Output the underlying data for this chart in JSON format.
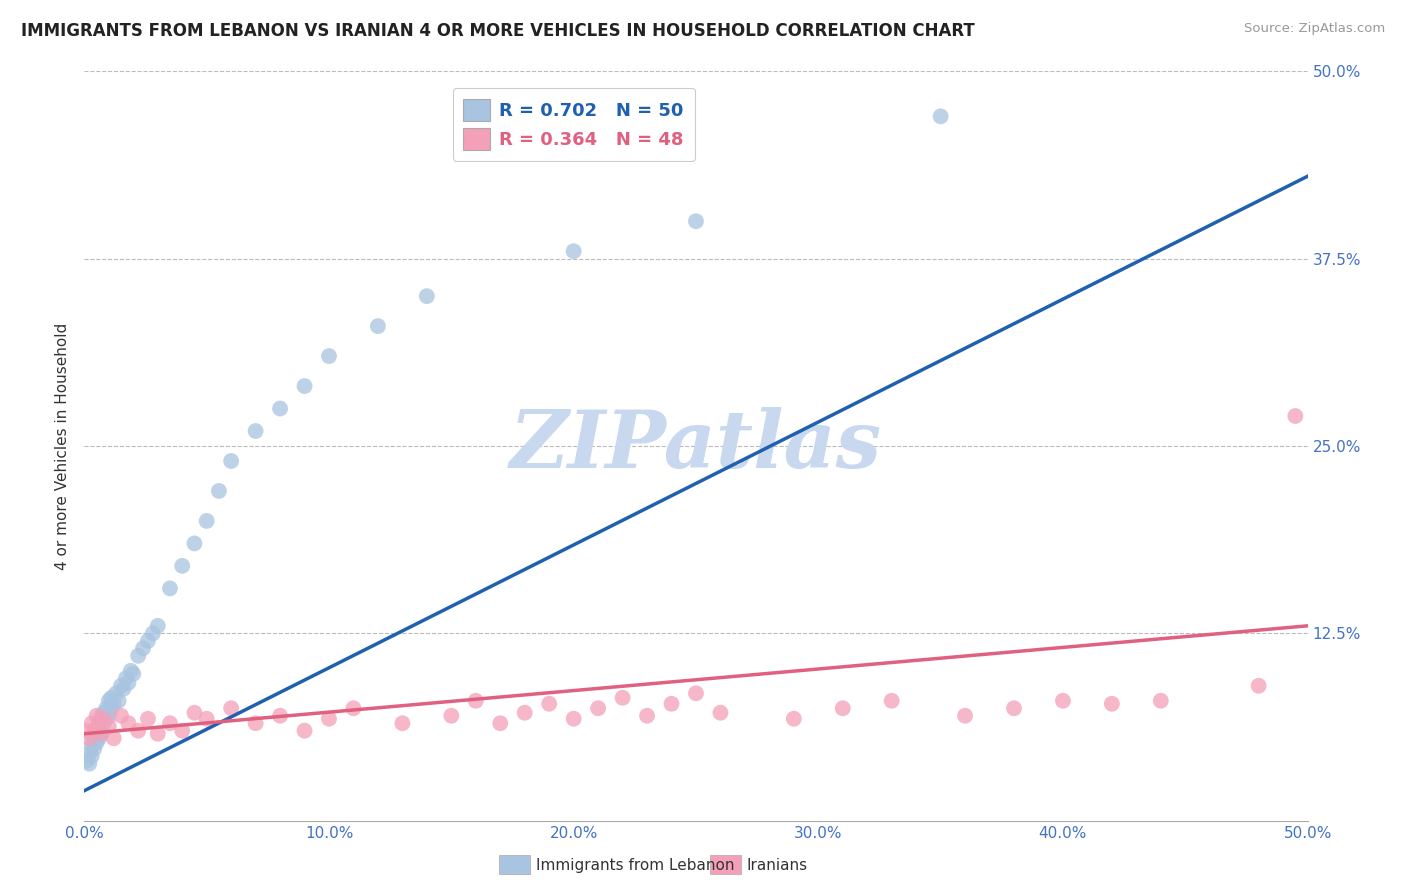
{
  "title": "IMMIGRANTS FROM LEBANON VS IRANIAN 4 OR MORE VEHICLES IN HOUSEHOLD CORRELATION CHART",
  "source": "Source: ZipAtlas.com",
  "ylabel": "4 or more Vehicles in Household",
  "xlim": [
    0.0,
    0.5
  ],
  "ylim": [
    0.0,
    0.5
  ],
  "R_lebanon": 0.702,
  "N_lebanon": 50,
  "R_iranians": 0.364,
  "N_iranians": 48,
  "color_lebanon": "#a8c4e0",
  "color_iranians": "#f4a0b8",
  "line_color_lebanon": "#2060b0",
  "line_color_iranians": "#e06080",
  "background_color": "#ffffff",
  "watermark_text": "ZIPatlas",
  "watermark_color": "#c8d8ee",
  "lebanon_x": [
    0.001,
    0.002,
    0.002,
    0.003,
    0.003,
    0.004,
    0.004,
    0.005,
    0.005,
    0.006,
    0.006,
    0.007,
    0.007,
    0.008,
    0.008,
    0.009,
    0.009,
    0.01,
    0.01,
    0.011,
    0.011,
    0.012,
    0.013,
    0.014,
    0.015,
    0.016,
    0.017,
    0.018,
    0.019,
    0.02,
    0.022,
    0.024,
    0.026,
    0.028,
    0.03,
    0.035,
    0.04,
    0.045,
    0.05,
    0.055,
    0.06,
    0.07,
    0.08,
    0.09,
    0.1,
    0.12,
    0.14,
    0.2,
    0.25,
    0.35
  ],
  "lebanon_y": [
    0.04,
    0.045,
    0.038,
    0.05,
    0.043,
    0.048,
    0.055,
    0.052,
    0.06,
    0.055,
    0.065,
    0.058,
    0.07,
    0.065,
    0.072,
    0.068,
    0.075,
    0.07,
    0.08,
    0.075,
    0.082,
    0.078,
    0.085,
    0.08,
    0.09,
    0.088,
    0.095,
    0.092,
    0.1,
    0.098,
    0.11,
    0.115,
    0.12,
    0.125,
    0.13,
    0.155,
    0.17,
    0.185,
    0.2,
    0.22,
    0.24,
    0.26,
    0.275,
    0.29,
    0.31,
    0.33,
    0.35,
    0.38,
    0.4,
    0.47
  ],
  "iranian_x": [
    0.001,
    0.002,
    0.003,
    0.004,
    0.005,
    0.006,
    0.007,
    0.008,
    0.01,
    0.012,
    0.015,
    0.018,
    0.022,
    0.026,
    0.03,
    0.035,
    0.04,
    0.045,
    0.05,
    0.06,
    0.07,
    0.08,
    0.09,
    0.1,
    0.11,
    0.13,
    0.15,
    0.16,
    0.17,
    0.18,
    0.19,
    0.2,
    0.21,
    0.22,
    0.23,
    0.24,
    0.25,
    0.26,
    0.29,
    0.31,
    0.33,
    0.36,
    0.38,
    0.4,
    0.42,
    0.44,
    0.48,
    0.495
  ],
  "iranian_y": [
    0.06,
    0.055,
    0.065,
    0.06,
    0.07,
    0.065,
    0.058,
    0.068,
    0.063,
    0.055,
    0.07,
    0.065,
    0.06,
    0.068,
    0.058,
    0.065,
    0.06,
    0.072,
    0.068,
    0.075,
    0.065,
    0.07,
    0.06,
    0.068,
    0.075,
    0.065,
    0.07,
    0.08,
    0.065,
    0.072,
    0.078,
    0.068,
    0.075,
    0.082,
    0.07,
    0.078,
    0.085,
    0.072,
    0.068,
    0.075,
    0.08,
    0.07,
    0.075,
    0.08,
    0.078,
    0.08,
    0.09,
    0.27
  ],
  "leb_line_x": [
    0.0,
    0.5
  ],
  "leb_line_y": [
    0.02,
    0.43
  ],
  "ira_line_x": [
    0.0,
    0.5
  ],
  "ira_line_y": [
    0.058,
    0.13
  ]
}
